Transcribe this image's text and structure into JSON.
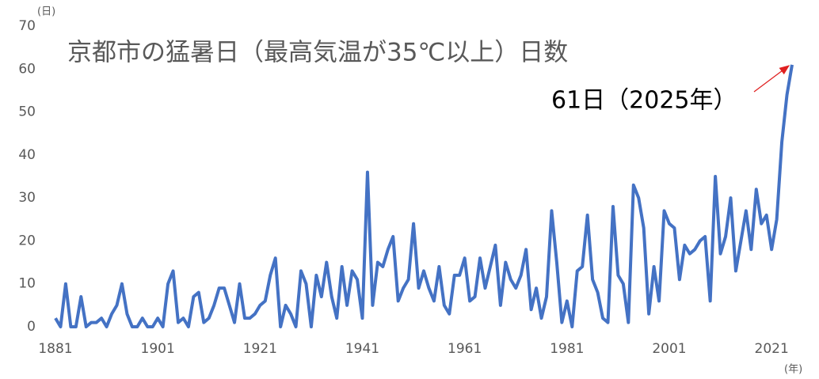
{
  "chart_data": {
    "type": "line",
    "title": "京都市の猛暑日（最高気温が35℃以上）日数",
    "y_unit": "(日)",
    "x_unit": "(年)",
    "annotation": "61日（2025年）",
    "x": [
      1881,
      1882,
      1883,
      1884,
      1885,
      1886,
      1887,
      1888,
      1889,
      1890,
      1891,
      1892,
      1893,
      1894,
      1895,
      1896,
      1897,
      1898,
      1899,
      1900,
      1901,
      1902,
      1903,
      1904,
      1905,
      1906,
      1907,
      1908,
      1909,
      1910,
      1911,
      1912,
      1913,
      1914,
      1915,
      1916,
      1917,
      1918,
      1919,
      1920,
      1921,
      1922,
      1923,
      1924,
      1925,
      1926,
      1927,
      1928,
      1929,
      1930,
      1931,
      1932,
      1933,
      1934,
      1935,
      1936,
      1937,
      1938,
      1939,
      1940,
      1941,
      1942,
      1943,
      1944,
      1945,
      1946,
      1947,
      1948,
      1949,
      1950,
      1951,
      1952,
      1953,
      1954,
      1955,
      1956,
      1957,
      1958,
      1959,
      1960,
      1961,
      1962,
      1963,
      1964,
      1965,
      1966,
      1967,
      1968,
      1969,
      1970,
      1971,
      1972,
      1973,
      1974,
      1975,
      1976,
      1977,
      1978,
      1979,
      1980,
      1981,
      1982,
      1983,
      1984,
      1985,
      1986,
      1987,
      1988,
      1989,
      1990,
      1991,
      1992,
      1993,
      1994,
      1995,
      1996,
      1997,
      1998,
      1999,
      2000,
      2001,
      2002,
      2003,
      2004,
      2005,
      2006,
      2007,
      2008,
      2009,
      2010,
      2011,
      2012,
      2013,
      2014,
      2015,
      2016,
      2017,
      2018,
      2019,
      2020,
      2021,
      2022,
      2023,
      2024,
      2025
    ],
    "series": [
      {
        "name": "猛暑日",
        "color": "#4472c4",
        "values": [
          2,
          0,
          10,
          0,
          0,
          7,
          0,
          1,
          1,
          2,
          0,
          3,
          5,
          10,
          3,
          0,
          0,
          2,
          0,
          0,
          2,
          0,
          10,
          13,
          1,
          2,
          0,
          7,
          8,
          1,
          2,
          5,
          9,
          9,
          5,
          1,
          10,
          2,
          2,
          3,
          5,
          6,
          12,
          16,
          0,
          5,
          3,
          0,
          13,
          10,
          0,
          12,
          7,
          15,
          7,
          2,
          14,
          5,
          13,
          11,
          2,
          36,
          5,
          15,
          14,
          18,
          21,
          6,
          9,
          11,
          24,
          9,
          13,
          9,
          6,
          14,
          5,
          3,
          12,
          12,
          16,
          6,
          7,
          16,
          9,
          14,
          19,
          5,
          15,
          11,
          9,
          12,
          18,
          4,
          9,
          2,
          7,
          27,
          15,
          1,
          6,
          0,
          13,
          14,
          26,
          11,
          8,
          2,
          1,
          28,
          12,
          10,
          1,
          33,
          30,
          23,
          3,
          14,
          6,
          27,
          24,
          23,
          11,
          19,
          17,
          18,
          20,
          21,
          6,
          35,
          17,
          21,
          30,
          13,
          20,
          27,
          18,
          32,
          24,
          26,
          18,
          25,
          43,
          54,
          61
        ]
      }
    ],
    "xlim": [
      1881,
      2025
    ],
    "xticks": [
      1881,
      1901,
      1921,
      1941,
      1961,
      1981,
      2001,
      2021
    ],
    "ylim": [
      0,
      70
    ],
    "yticks": [
      0,
      10,
      20,
      30,
      40,
      50,
      60,
      70
    ],
    "grid": false
  }
}
